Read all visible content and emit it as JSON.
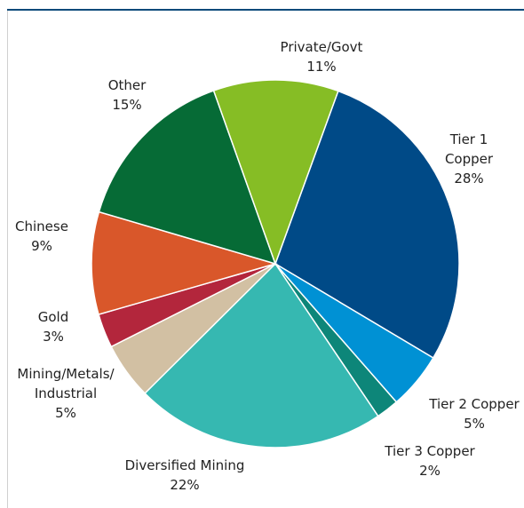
{
  "chart_data": {
    "type": "pie",
    "slices": [
      {
        "label": "Tier 1 Copper",
        "value": 28,
        "pct": "28%",
        "color": "#004a87"
      },
      {
        "label": "Tier 2 Copper",
        "value": 5,
        "pct": "5%",
        "color": "#0091d4"
      },
      {
        "label": "Tier 3 Copper",
        "value": 2,
        "pct": "2%",
        "color": "#0d8679"
      },
      {
        "label": "Diversified Mining",
        "value": 22,
        "pct": "22%",
        "color": "#36b8b1"
      },
      {
        "label": "Mining/Metals/Industrial",
        "value": 5,
        "pct": "5%",
        "color": "#d2c0a3"
      },
      {
        "label": "Gold",
        "value": 3,
        "pct": "3%",
        "color": "#b3263c"
      },
      {
        "label": "Chinese",
        "value": 9,
        "pct": "9%",
        "color": "#d9572a"
      },
      {
        "label": "Other",
        "value": 15,
        "pct": "15%",
        "color": "#066b36"
      },
      {
        "label": "Private/Govt",
        "value": 11,
        "pct": "11%",
        "color": "#86bd25"
      }
    ]
  }
}
